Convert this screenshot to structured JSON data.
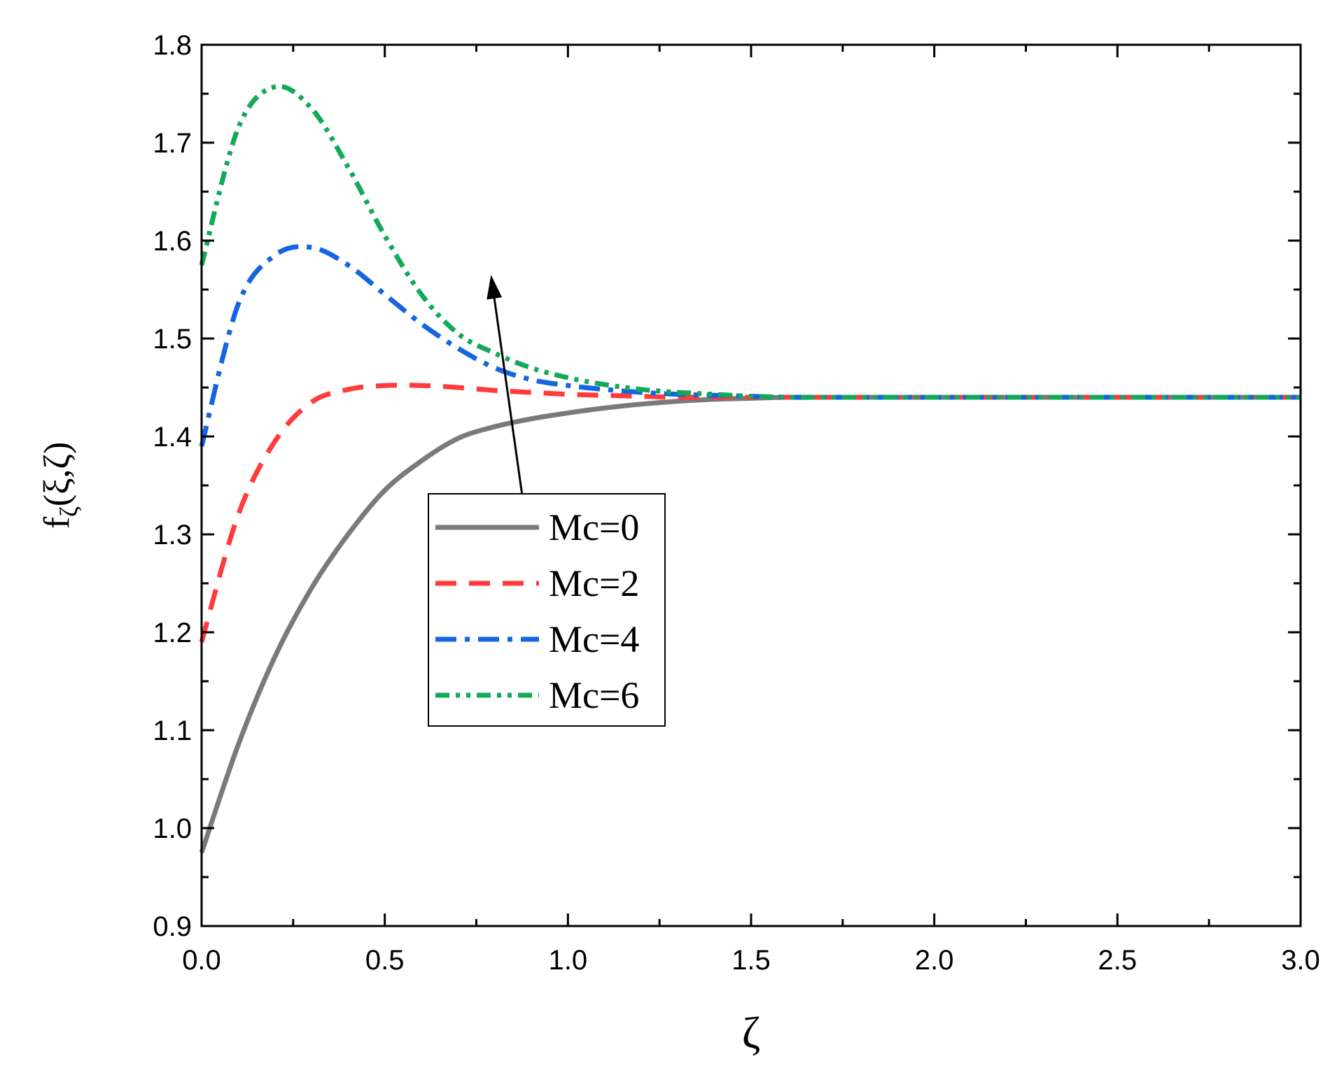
{
  "chart_data": {
    "type": "line",
    "xlabel": "ζ",
    "ylabel": "fζ(ξ,ζ)",
    "ylabel_main": "f",
    "ylabel_sub": "ζ",
    "ylabel_rest": "(ξ,ζ)",
    "xlim": [
      0,
      3
    ],
    "ylim": [
      0.9,
      1.8
    ],
    "xticks": [
      0,
      0.5,
      1,
      1.5,
      2,
      2.5,
      3
    ],
    "xtick_labels": [
      "0.0",
      "0.5",
      "1.0",
      "1.5",
      "2.0",
      "2.5",
      "3.0"
    ],
    "yticks": [
      0.9,
      1.0,
      1.1,
      1.2,
      1.3,
      1.4,
      1.5,
      1.6,
      1.7,
      1.8
    ],
    "ytick_labels": [
      "0.9",
      "1.0",
      "1.1",
      "1.2",
      "1.3",
      "1.4",
      "1.5",
      "1.6",
      "1.7",
      "1.8"
    ],
    "grid": false,
    "legend_position": "center",
    "x": [
      0,
      0.1,
      0.2,
      0.3,
      0.4,
      0.5,
      0.6,
      0.7,
      0.8,
      0.9,
      1.0,
      1.1,
      1.2,
      1.3,
      1.4,
      1.5,
      1.6,
      1.7,
      1.8,
      1.9,
      2.0,
      2.2,
      2.4,
      2.6,
      2.8,
      3.0
    ],
    "series": [
      {
        "name": "Mc=0",
        "color": "#7a7a7a",
        "dash": "solid",
        "values": [
          0.975,
          1.085,
          1.175,
          1.245,
          1.3,
          1.345,
          1.375,
          1.398,
          1.41,
          1.418,
          1.424,
          1.429,
          1.433,
          1.436,
          1.438,
          1.439,
          1.44,
          1.44,
          1.44,
          1.44,
          1.44,
          1.44,
          1.44,
          1.44,
          1.44,
          1.44
        ]
      },
      {
        "name": "Mc=2",
        "color": "#ff3b3b",
        "dash": "dash",
        "values": [
          1.19,
          1.32,
          1.395,
          1.435,
          1.448,
          1.452,
          1.452,
          1.45,
          1.447,
          1.445,
          1.443,
          1.442,
          1.441,
          1.44,
          1.44,
          1.44,
          1.44,
          1.44,
          1.44,
          1.44,
          1.44,
          1.44,
          1.44,
          1.44,
          1.44,
          1.44
        ]
      },
      {
        "name": "Mc=4",
        "color": "#1565e0",
        "dash": "dashdot",
        "values": [
          1.39,
          1.535,
          1.585,
          1.593,
          1.575,
          1.545,
          1.515,
          1.49,
          1.47,
          1.458,
          1.452,
          1.448,
          1.445,
          1.443,
          1.442,
          1.441,
          1.44,
          1.44,
          1.44,
          1.44,
          1.44,
          1.44,
          1.44,
          1.44,
          1.44,
          1.44
        ]
      },
      {
        "name": "Mc=6",
        "color": "#14a85a",
        "dash": "dashdotdot",
        "values": [
          1.575,
          1.715,
          1.757,
          1.735,
          1.675,
          1.605,
          1.545,
          1.505,
          1.485,
          1.47,
          1.46,
          1.453,
          1.448,
          1.445,
          1.443,
          1.441,
          1.44,
          1.44,
          1.44,
          1.44,
          1.44,
          1.44,
          1.44,
          1.44,
          1.44,
          1.44
        ]
      }
    ],
    "annotations": [
      {
        "type": "arrow",
        "from": [
          0.88,
          1.327
        ],
        "to": [
          0.79,
          1.565
        ]
      }
    ]
  }
}
